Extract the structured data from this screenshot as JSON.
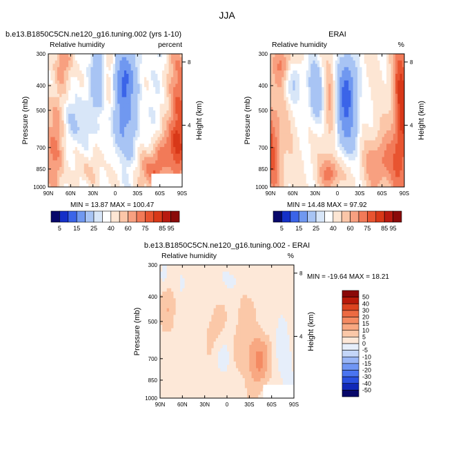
{
  "page": {
    "title": "JJA"
  },
  "chart_data": [
    {
      "type": "heatmap",
      "title": "b.e13.B1850C5CN.ne120_g16.tuning.002 (yrs 1-10)",
      "subtitle_left": "Relative humidity",
      "subtitle_right": "percent",
      "ylabel": "Pressure (mb)",
      "ylabel_right": "Height (km)",
      "xticks": [
        "90N",
        "60N",
        "30N",
        "0",
        "30S",
        "60S",
        "90S"
      ],
      "yticks": [
        "300",
        "400",
        "500",
        "700",
        "850",
        "1000"
      ],
      "yticks_right": [
        "8",
        "4"
      ],
      "ylim": [
        1000,
        300
      ],
      "stats": {
        "min_label": "MIN =",
        "min": "13.87",
        "max_label": "MAX =",
        "max": "100.47"
      },
      "colorbar": {
        "orientation": "horizontal",
        "labels": [
          "5",
          "15",
          "25",
          "40",
          "60",
          "75",
          "85",
          "95"
        ]
      }
    },
    {
      "type": "heatmap",
      "title": "ERAI",
      "subtitle_left": "Relative humidity",
      "subtitle_right": "%",
      "ylabel": "Pressure (mb)",
      "ylabel_right": "Height (km)",
      "xticks": [
        "90N",
        "60N",
        "30N",
        "0",
        "30S",
        "60S",
        "90S"
      ],
      "yticks": [
        "300",
        "400",
        "500",
        "700",
        "850",
        "1000"
      ],
      "yticks_right": [
        "8",
        "4"
      ],
      "ylim": [
        1000,
        300
      ],
      "stats": {
        "min_label": "MIN =",
        "min": "14.48",
        "max_label": "MAX =",
        "max": "97.92"
      },
      "colorbar": {
        "orientation": "horizontal",
        "labels": [
          "5",
          "15",
          "25",
          "40",
          "60",
          "75",
          "85",
          "95"
        ]
      }
    },
    {
      "type": "heatmap",
      "title": "b.e13.B1850C5CN.ne120_g16.tuning.002 - ERAI",
      "subtitle_left": "Relative humidity",
      "subtitle_right": "%",
      "ylabel": "Pressure (mb)",
      "ylabel_right": "Height (km)",
      "xticks": [
        "90N",
        "60N",
        "30N",
        "0",
        "30S",
        "60S",
        "90S"
      ],
      "yticks": [
        "300",
        "400",
        "500",
        "700",
        "850",
        "1000"
      ],
      "yticks_right": [
        "8",
        "4"
      ],
      "ylim": [
        1000,
        300
      ],
      "stats": {
        "min_label": "MIN =",
        "min": "-19.64",
        "max_label": "MAX =",
        "max": "18.21"
      },
      "colorbar": {
        "orientation": "vertical",
        "labels": [
          "50",
          "40",
          "30",
          "20",
          "15",
          "10",
          "5",
          "0",
          "-5",
          "-10",
          "-15",
          "-20",
          "-30",
          "-40",
          "-50"
        ]
      }
    }
  ],
  "colors": {
    "abs_scale": [
      "#08086a",
      "#1530c8",
      "#3b64e8",
      "#7098f0",
      "#a8c4f4",
      "#d8e6f8",
      "#ffffff",
      "#fde6d4",
      "#fbc6a8",
      "#f8a080",
      "#f27a58",
      "#e85430",
      "#d83818",
      "#b81a10",
      "#8a0a0a"
    ],
    "diff_scale": [
      "#08086a",
      "#1028b8",
      "#2a50e0",
      "#4a74f0",
      "#7096f4",
      "#9ab6f6",
      "#c4d6f8",
      "#e6eefa",
      "#fde8d8",
      "#fbc8a8",
      "#f8a882",
      "#f48a62",
      "#ec6a42",
      "#dc4420",
      "#b81a0a",
      "#8a0808"
    ]
  }
}
